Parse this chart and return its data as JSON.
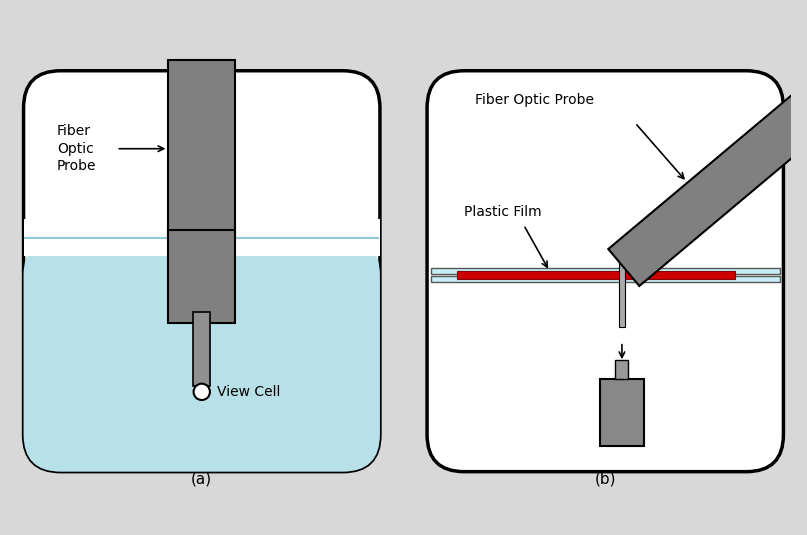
{
  "bg_color": "#d8d8d8",
  "panel_bg": "#ffffff",
  "gray_probe": "#808080",
  "gray_detector": "#888888",
  "light_blue": "#b8e0e8",
  "red_film": "#cc0000",
  "glass_color": "#c8eef5",
  "label_a": "(a)",
  "label_b": "(b)",
  "text_fiber_optic_probe_a": "Fiber\nOptic\nProbe",
  "text_fiber_optic_probe_b": "Fiber Optic Probe",
  "text_view_cell": "View Cell",
  "text_plastic_film": "Plastic Film",
  "border_lw": 2.5,
  "rounding": 0.8
}
